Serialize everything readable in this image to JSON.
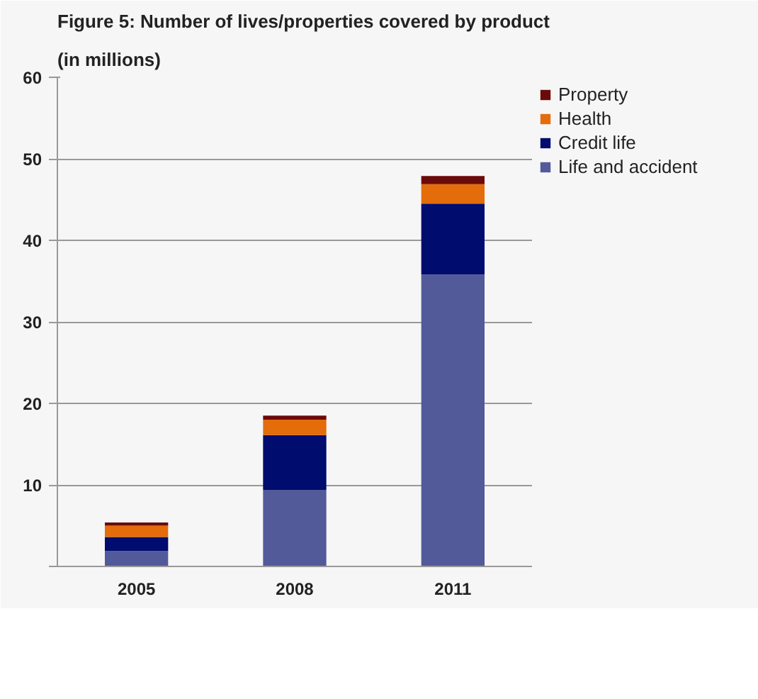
{
  "chart_data": {
    "type": "bar",
    "title": "Figure 5: Number of lives/properties covered by product",
    "subtitle": "(in millions)",
    "categories": [
      "2005",
      "2008",
      "2011"
    ],
    "stacked": true,
    "series": [
      {
        "name": "Life and accident",
        "color": "#525a9a",
        "values": [
          1.9,
          9.4,
          35.8
        ]
      },
      {
        "name": "Credit life",
        "color": "#000c6e",
        "values": [
          1.7,
          6.7,
          8.7
        ]
      },
      {
        "name": "Health",
        "color": "#e46c0a",
        "values": [
          1.4,
          1.9,
          2.4
        ]
      },
      {
        "name": "Property",
        "color": "#6b0a0a",
        "values": [
          0.4,
          0.5,
          1.0
        ]
      }
    ],
    "ylim": [
      0,
      60
    ],
    "yticks": [
      {
        "value": 0,
        "label": null
      },
      10,
      20,
      30,
      40,
      50,
      60
    ],
    "grid": "y",
    "legend": "right"
  }
}
